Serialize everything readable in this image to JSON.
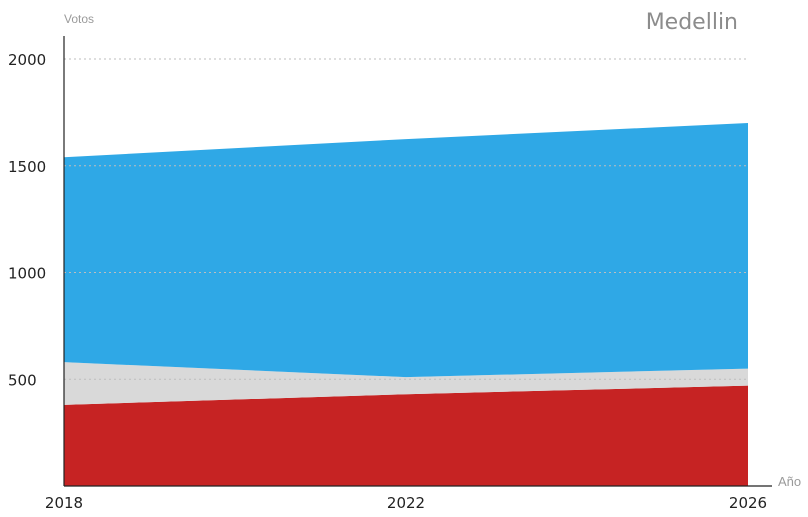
{
  "chart_data": {
    "type": "area",
    "title": "Medellin",
    "ylabel": "Votos",
    "xlabel": "Año",
    "x": [
      2018,
      2022,
      2026
    ],
    "x_ticks": [
      "2018",
      "2022",
      "2026"
    ],
    "y_ticks": [
      "500",
      "1000",
      "1500",
      "2000"
    ],
    "ylim": [
      0,
      2200
    ],
    "grid": true,
    "stacked": true,
    "series": [
      {
        "color": "#c62323",
        "values": [
          380,
          430,
          470
        ]
      },
      {
        "color": "#d9d9d9",
        "values": [
          200,
          80,
          80
        ]
      },
      {
        "color": "#2fa8e6",
        "values": [
          960,
          1115,
          1150
        ]
      }
    ]
  }
}
